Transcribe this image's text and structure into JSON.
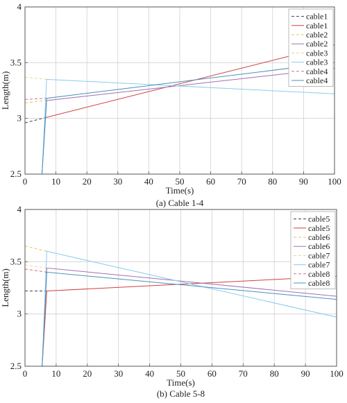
{
  "colors": {
    "background": "#ffffff",
    "axis": "#555555",
    "grid": "#d0d0d0",
    "black_dashed": "#4a4a6a",
    "red": "#d04040",
    "yellow": "#e8d070",
    "purple": "#a070b0",
    "light_yellow": "#e8d898",
    "cyan": "#90d0f0",
    "pink": "#d07080",
    "teal": "#50a0c0"
  },
  "chart_data": [
    {
      "type": "line",
      "caption": "(a) Cable 1-4",
      "xlabel": "Time(s)",
      "ylabel": "Length(m)",
      "xlim": [
        0,
        100
      ],
      "ylim": [
        2.5,
        4
      ],
      "xticks": [
        "0",
        "10",
        "20",
        "30",
        "40",
        "50",
        "60",
        "70",
        "80",
        "90",
        "100"
      ],
      "yticks": [
        "2.5",
        "3",
        "3.5",
        "4"
      ],
      "grid": true,
      "legend_position": "top-right",
      "series": [
        {
          "name": "cable1",
          "color": "#3a3a5a",
          "dash": "4,3",
          "x": [
            0,
            7
          ],
          "y": [
            2.96,
            3.01
          ]
        },
        {
          "name": "cable1",
          "color": "#d04040",
          "dash": "",
          "x": [
            7,
            100
          ],
          "y": [
            3.01,
            3.66
          ]
        },
        {
          "name": "cable2",
          "color": "#e0c860",
          "dash": "4,3",
          "x": [
            0,
            7
          ],
          "y": [
            3.14,
            3.16
          ]
        },
        {
          "name": "cable2",
          "color": "#a070b0",
          "dash": "",
          "x": [
            5.5,
            7,
            100
          ],
          "y": [
            2.5,
            3.16,
            3.45
          ]
        },
        {
          "name": "cable3",
          "color": "#e8d898",
          "dash": "4,3",
          "x": [
            0,
            7
          ],
          "y": [
            3.37,
            3.35
          ]
        },
        {
          "name": "cable3",
          "color": "#88ccee",
          "dash": "",
          "x": [
            5.5,
            7,
            100
          ],
          "y": [
            2.5,
            3.35,
            3.22
          ]
        },
        {
          "name": "cable4",
          "color": "#d07080",
          "dash": "4,3",
          "x": [
            0,
            7
          ],
          "y": [
            3.17,
            3.18
          ]
        },
        {
          "name": "cable4",
          "color": "#4a90b8",
          "dash": "",
          "x": [
            5.5,
            7,
            100
          ],
          "y": [
            2.5,
            3.18,
            3.5
          ]
        }
      ]
    },
    {
      "type": "line",
      "caption": "(b) Cable 5-8",
      "xlabel": "Time(s)",
      "ylabel": "Length(m)",
      "xlim": [
        0,
        100
      ],
      "ylim": [
        2.5,
        4
      ],
      "xticks": [
        "0",
        "10",
        "20",
        "30",
        "40",
        "50",
        "60",
        "70",
        "80",
        "90",
        "100"
      ],
      "yticks": [
        "2.5",
        "3",
        "3.5",
        "4"
      ],
      "grid": true,
      "legend_position": "top-right",
      "series": [
        {
          "name": "cable5",
          "color": "#3a3a5a",
          "dash": "4,3",
          "x": [
            0,
            7
          ],
          "y": [
            3.22,
            3.22
          ]
        },
        {
          "name": "cable5",
          "color": "#d04040",
          "dash": "",
          "x": [
            5.5,
            7,
            100
          ],
          "y": [
            2.5,
            3.22,
            3.36
          ]
        },
        {
          "name": "cable6",
          "color": "#e0c860",
          "dash": "4,3",
          "x": [
            0,
            7
          ],
          "y": [
            3.65,
            3.6
          ]
        },
        {
          "name": "cable6",
          "color": "#a070b0",
          "dash": "",
          "x": [
            5.5,
            7,
            100
          ],
          "y": [
            2.5,
            3.44,
            3.17
          ]
        },
        {
          "name": "cable7",
          "color": "#e8d898",
          "dash": "4,3",
          "x": [
            0,
            7
          ],
          "y": [
            3.47,
            3.44
          ]
        },
        {
          "name": "cable7",
          "color": "#88ccee",
          "dash": "",
          "x": [
            5.5,
            7,
            100
          ],
          "y": [
            2.5,
            3.6,
            2.97
          ]
        },
        {
          "name": "cable8",
          "color": "#d07080",
          "dash": "4,3",
          "x": [
            0,
            7
          ],
          "y": [
            3.43,
            3.4
          ]
        },
        {
          "name": "cable8",
          "color": "#4a90b8",
          "dash": "",
          "x": [
            5.5,
            7,
            100
          ],
          "y": [
            2.5,
            3.4,
            3.14
          ]
        }
      ]
    }
  ]
}
